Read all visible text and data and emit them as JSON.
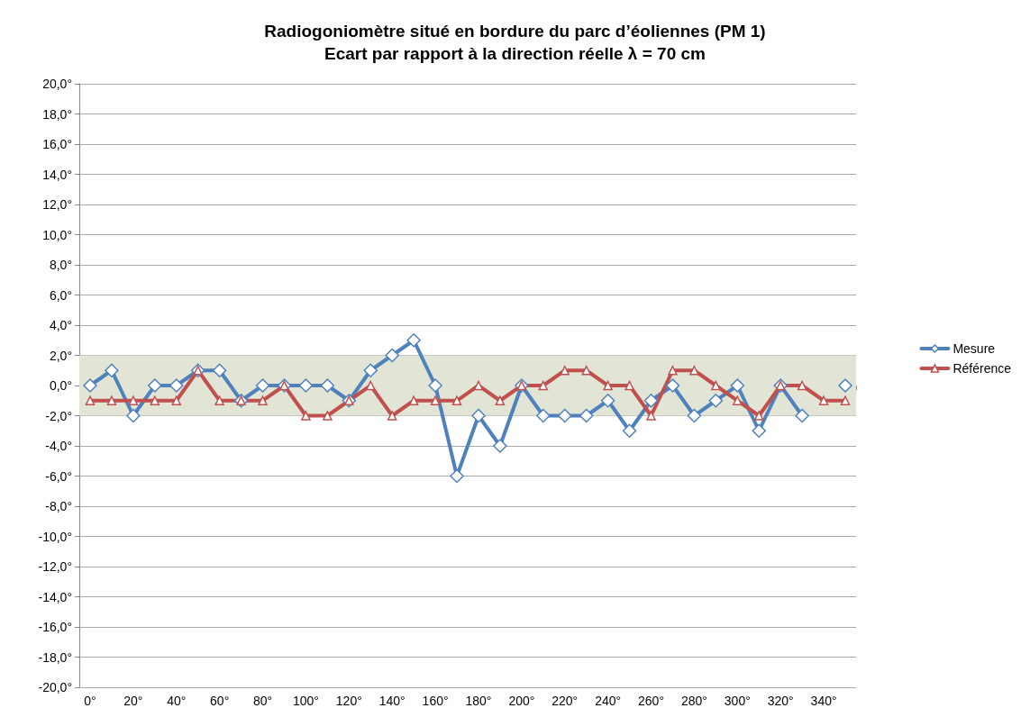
{
  "chart_data": {
    "type": "line",
    "title": "Radiogoniomètre situé en bordure du parc d’éoliennes (PM 1)",
    "subtitle": "Ecart par rapport à la direction réelle λ = 70 cm",
    "categories": [
      "0°",
      null,
      "20°",
      null,
      "40°",
      null,
      "60°",
      null,
      "80°",
      null,
      "100°",
      null,
      "120°",
      null,
      "140°",
      null,
      "160°",
      null,
      "180°",
      null,
      "200°",
      null,
      "220°",
      null,
      "240°",
      null,
      "260°",
      null,
      "280°",
      null,
      "300°",
      null,
      "320°",
      null,
      "340°",
      null
    ],
    "series": [
      {
        "name": "Mesure",
        "color": "#4f81bd",
        "marker": "diamond",
        "values": [
          0,
          1,
          -2,
          0,
          0,
          1,
          1,
          -1,
          0,
          0,
          0,
          0,
          -1,
          1,
          2,
          3,
          0,
          -6,
          -2,
          -4,
          0,
          -2,
          -2,
          -2,
          -1,
          -3,
          -1,
          0,
          -2,
          -1,
          0,
          -3,
          0,
          -2,
          null,
          0
        ]
      },
      {
        "name": "Référence",
        "color": "#c0504d",
        "marker": "triangle",
        "values": [
          -1,
          -1,
          -1,
          -1,
          -1,
          1,
          -1,
          -1,
          -1,
          0,
          -2,
          -2,
          -1,
          0,
          -2,
          -1,
          -1,
          -1,
          0,
          -1,
          0,
          0,
          1,
          1,
          0,
          0,
          -2,
          1,
          1,
          0,
          -1,
          -2,
          0,
          0,
          -1,
          -1
        ]
      }
    ],
    "ylim": [
      -20,
      20
    ],
    "yticks": [
      {
        "value": -20,
        "label": "-20,0°"
      },
      {
        "value": -18,
        "label": "-18,0°"
      },
      {
        "value": -16,
        "label": "-16,0°"
      },
      {
        "value": -14,
        "label": "-14,0°"
      },
      {
        "value": -12,
        "label": "-12,0°"
      },
      {
        "value": -10,
        "label": "-10,0°"
      },
      {
        "value": -8,
        "label": "-8,0°"
      },
      {
        "value": -6,
        "label": "-6,0°"
      },
      {
        "value": -4,
        "label": "-4,0°"
      },
      {
        "value": -2,
        "label": "-2,0°"
      },
      {
        "value": 0,
        "label": "0,0°"
      },
      {
        "value": 2,
        "label": "2,0°"
      },
      {
        "value": 4,
        "label": "4,0°"
      },
      {
        "value": 6,
        "label": "6,0°"
      },
      {
        "value": 8,
        "label": "8,0°"
      },
      {
        "value": 10,
        "label": "10,0°"
      },
      {
        "value": 12,
        "label": "12,0°"
      },
      {
        "value": 14,
        "label": "14,0°"
      },
      {
        "value": 16,
        "label": "16,0°"
      },
      {
        "value": 18,
        "label": "18,0°"
      },
      {
        "value": 20,
        "label": "20,0°"
      }
    ],
    "bands": [
      {
        "axis": "y",
        "from": -2,
        "to": 2,
        "color": "#e2e5d6"
      }
    ],
    "grid": "y",
    "legend": "right",
    "line_style": "solid"
  }
}
